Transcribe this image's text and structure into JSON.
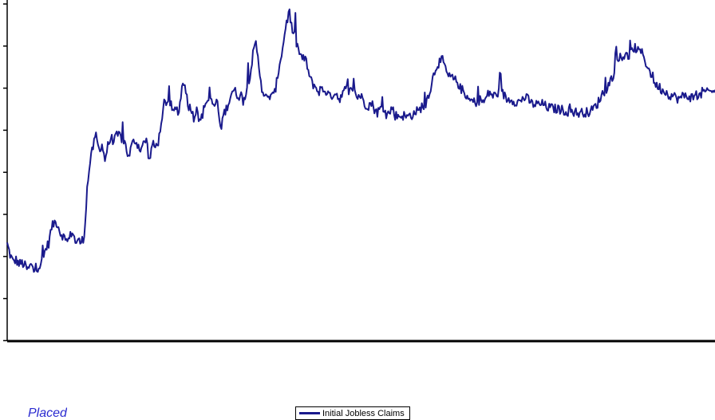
{
  "colors": {
    "series": "#1a1a8c",
    "axis": "#000000"
  },
  "chart_data": {
    "type": "line",
    "title": "",
    "xlabel": "",
    "ylabel": "",
    "y_ticks_count": 9,
    "grid": false,
    "legend_placement": "bottom-center",
    "series": [
      {
        "name": "Initial Jobless Claims",
        "y": [
          285,
          253,
          232,
          238,
          226,
          229,
          221,
          208,
          224,
          206,
          215,
          221,
          236,
          271,
          287,
          333,
          349,
          345,
          316,
          308,
          287,
          301,
          324,
          291,
          294,
          289,
          308,
          447,
          526,
          569,
          603,
          561,
          577,
          532,
          572,
          596,
          587,
          601,
          604,
          589,
          577,
          536,
          572,
          590,
          578,
          562,
          577,
          592,
          527,
          578,
          567,
          586,
          624,
          699,
          703,
          701,
          667,
          683,
          673,
          745,
          762,
          689,
          689,
          651,
          691,
          639,
          666,
          702,
          706,
          699,
          690,
          704,
          617,
          663,
          682,
          706,
          735,
          731,
          719,
          721,
          697,
          742,
          782,
          839,
          872,
          806,
          743,
          718,
          707,
          725,
          716,
          758,
          815,
          856,
          923,
          956,
          923,
          893,
          864,
          838,
          826,
          822,
          777,
          755,
          748,
          730,
          739,
          735,
          731,
          715,
          724,
          729,
          711,
          718,
          735,
          730,
          733,
          748,
          714,
          722,
          710,
          694,
          691,
          698,
          681,
          670,
          682,
          676,
          665,
          668,
          685,
          662,
          660,
          661,
          661,
          656,
          663,
          663,
          674,
          673,
          689,
          684,
          717,
          743,
          781,
          808,
          818,
          823,
          798,
          774,
          773,
          765,
          761,
          741,
          734,
          707,
          706,
          704,
          699,
          705,
          708,
          699,
          719,
          730,
          718,
          722,
          730,
          729,
          718,
          706,
          712,
          704,
          702,
          701,
          711,
          714,
          708,
          697,
          694,
          694,
          694,
          695,
          687,
          684,
          683,
          681,
          680,
          679,
          676,
          673,
          674,
          673,
          671,
          668,
          670,
          672,
          670,
          673,
          683,
          691,
          708,
          726,
          730,
          751,
          769,
          790,
          815,
          829,
          836,
          836,
          833,
          848,
          862,
          849,
          849,
          834,
          808,
          790,
          775,
          749,
          747,
          737,
          733,
          726,
          721,
          719,
          713,
          710,
          717,
          720,
          717,
          715,
          713,
          720,
          719,
          735,
          725,
          734,
          728,
          740
        ]
      }
    ]
  },
  "legend": {
    "label": "Initial Jobless Claims"
  },
  "source_note": "Placed"
}
